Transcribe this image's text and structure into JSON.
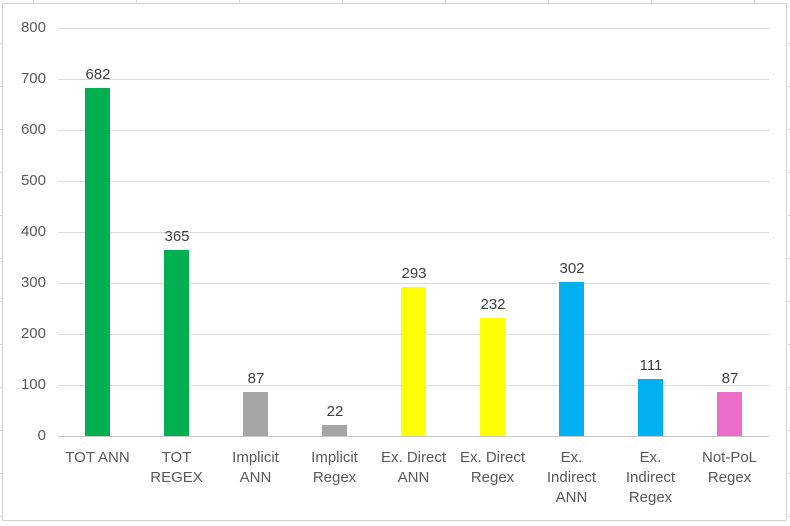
{
  "chart_data": {
    "type": "bar",
    "title": "",
    "xlabel": "",
    "ylabel": "",
    "legend": "none",
    "grid": true,
    "ylim": [
      0,
      800
    ],
    "ytick_interval": 100,
    "yticks": [
      "0",
      "100",
      "200",
      "300",
      "400",
      "500",
      "600",
      "700",
      "800"
    ],
    "categories": [
      "TOT ANN",
      "TOT REGEX",
      "Implicit ANN",
      "Implicit Regex",
      "Ex. Direct ANN",
      "Ex. Direct Regex",
      "Ex. Indirect ANN",
      "Ex. Indirect Regex",
      "Not-PoL Regex"
    ],
    "category_lines": [
      [
        "TOT ANN"
      ],
      [
        "TOT",
        "REGEX"
      ],
      [
        "Implicit",
        "ANN"
      ],
      [
        "Implicit",
        "Regex"
      ],
      [
        "Ex. Direct",
        "ANN"
      ],
      [
        "Ex. Direct",
        "Regex"
      ],
      [
        "Ex.",
        "Indirect",
        "ANN"
      ],
      [
        "Ex.",
        "Indirect",
        "Regex"
      ],
      [
        "Not-PoL",
        "Regex"
      ]
    ],
    "values": [
      682,
      365,
      87,
      22,
      293,
      232,
      302,
      111,
      87
    ],
    "data_labels": [
      "682",
      "365",
      "87",
      "22",
      "293",
      "232",
      "302",
      "111",
      "87"
    ],
    "bar_colors": [
      "#00B050",
      "#00B050",
      "#A6A6A6",
      "#A6A6A6",
      "#FFFF00",
      "#FFFF00",
      "#00B0F0",
      "#00B0F0",
      "#EE6CC9"
    ]
  },
  "colors": {
    "series_green": "#00B050",
    "series_gray": "#A6A6A6",
    "series_yellow": "#FFFF00",
    "series_blue": "#00B0F0",
    "series_pink": "#EE6CC9",
    "gridline": "#DBDBDB",
    "axis_line": "#C9C9C9",
    "tick_label_text": "#595959",
    "data_label_text": "#404040",
    "chart_border": "#D3D3D3",
    "background": "#FFFFFF"
  }
}
